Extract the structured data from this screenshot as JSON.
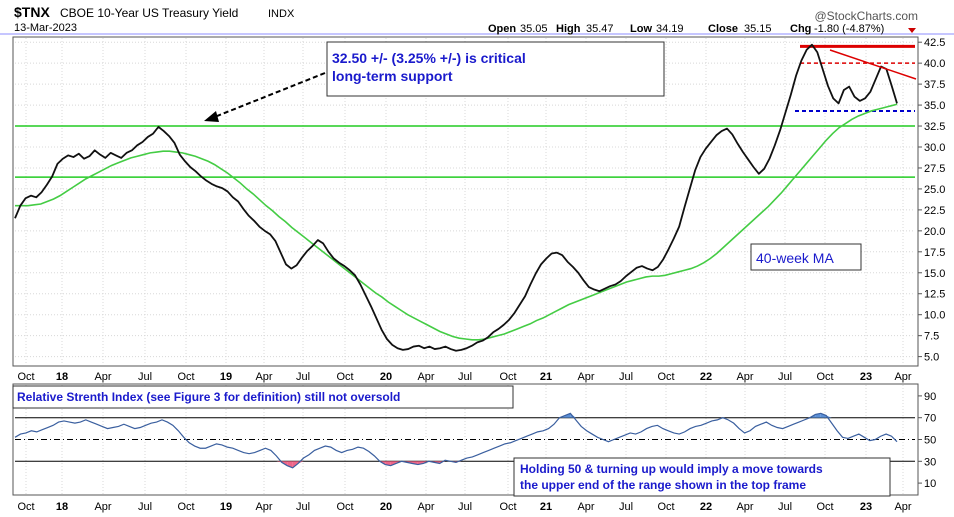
{
  "header": {
    "symbol": "$TNX",
    "name": "CBOE 10-Year US Treasury Yield",
    "exchange": "INDX",
    "date": "13-Mar-2023",
    "watermark": "@StockCharts.com",
    "ohlc": {
      "open_label": "Open",
      "open": "35.05",
      "high_label": "High",
      "high": "35.47",
      "low_label": "Low",
      "low": "34.19",
      "close_label": "Close",
      "close": "35.15",
      "chg_label": "Chg",
      "chg": "-1.80 (-4.87%)"
    }
  },
  "annotations": {
    "support_line1": "32.50 +/- (3.25% +/-) is critical",
    "support_line2": "long-term support",
    "ma_label": "40-week MA",
    "rsi_title": "Relative Strenth Index (see Figure 3 for definition) still not oversold",
    "rsi_note_line1": "Holding 50 & turning up would imply a move towards",
    "rsi_note_line2": "the upper end of the range shown in the top frame"
  },
  "colors": {
    "price": "#111111",
    "ma": "#44cc44",
    "support": "#22cc22",
    "resistance": "#dd0000",
    "blue_dashed": "#0000cc",
    "annotation_text": "#1a1acc",
    "rsi_line": "#3a5f9f",
    "rsi_overbought_fill": "#5b8fd6",
    "rsi_oversold_fill": "#ee6688"
  },
  "chart_data": [
    {
      "type": "line",
      "title": "CBOE 10-Year US Treasury Yield",
      "x_ticks": [
        "Oct",
        "18",
        "Apr",
        "Jul",
        "Oct",
        "19",
        "Apr",
        "Jul",
        "Oct",
        "20",
        "Apr",
        "Jul",
        "Oct",
        "21",
        "Apr",
        "Jul",
        "Oct",
        "22",
        "Apr",
        "Jul",
        "Oct",
        "23",
        "Apr"
      ],
      "y_ticks": [
        "5.0",
        "7.5",
        "10.0",
        "12.5",
        "15.0",
        "17.5",
        "20.0",
        "22.5",
        "25.0",
        "27.5",
        "30.0",
        "32.5",
        "35.0",
        "37.5",
        "40.0",
        "42.5"
      ],
      "ylim": [
        4,
        43
      ],
      "x_start": "2017-10-01",
      "series": [
        {
          "values": [
            21.5,
            23.0,
            23.9,
            24.2,
            24.0,
            24.6,
            25.5,
            26.5,
            28.0,
            28.6,
            29.0,
            28.8,
            29.2,
            28.6,
            28.9,
            29.6,
            29.1,
            28.7,
            29.3,
            29.0,
            28.7,
            29.3,
            29.6,
            30.2,
            30.6,
            31.2,
            31.6,
            32.4,
            31.9,
            31.3,
            30.5,
            29.1,
            28.3,
            27.6,
            27.1,
            26.5,
            26.0,
            25.6,
            25.3,
            25.1,
            24.7,
            24.0,
            23.5,
            22.6,
            21.8,
            21.2,
            20.5,
            20.0,
            19.6,
            18.8,
            17.4,
            16.0,
            15.5,
            15.9,
            16.8,
            17.6,
            18.2,
            18.9,
            18.5,
            17.5,
            16.7,
            16.2,
            15.8,
            15.3,
            14.7,
            13.6,
            12.3,
            11.0,
            9.6,
            8.2,
            7.1,
            6.4,
            6.0,
            5.8,
            5.9,
            6.2,
            6.3,
            6.0,
            6.2,
            5.9,
            6.0,
            6.2,
            5.9,
            5.7,
            5.8,
            6.0,
            6.3,
            6.7,
            6.9,
            7.3,
            7.9,
            8.3,
            8.8,
            9.4,
            10.2,
            11.2,
            12.2,
            13.6,
            14.9,
            16.0,
            16.7,
            17.3,
            17.4,
            17.1,
            16.3,
            15.7,
            15.0,
            14.1,
            13.3,
            13.0,
            12.8,
            13.1,
            13.4,
            13.6,
            14.0,
            14.6,
            15.1,
            15.6,
            15.8,
            15.5,
            15.3,
            15.7,
            16.6,
            17.8,
            19.1,
            20.5,
            22.8,
            25.0,
            27.2,
            28.8,
            29.8,
            30.6,
            31.4,
            31.9,
            32.2,
            31.5,
            30.4,
            29.4,
            28.5,
            27.6,
            26.8,
            27.4,
            28.6,
            30.2,
            32.0,
            34.1,
            36.2,
            38.5,
            40.3,
            41.6,
            42.2,
            41.3,
            39.3,
            37.3,
            35.8,
            35.2,
            36.8,
            37.2,
            36.0,
            35.5,
            35.8,
            36.6,
            38.1,
            39.6,
            39.3,
            37.3,
            35.2
          ]
        },
        {
          "name": "40-week MA",
          "values": [
            23.0,
            23.0,
            23.0,
            23.1,
            23.2,
            23.5,
            23.8,
            24.2,
            24.7,
            25.2,
            25.7,
            26.2,
            26.6,
            27.0,
            27.4,
            27.8,
            28.1,
            28.4,
            28.7,
            28.9,
            29.1,
            29.3,
            29.4,
            29.5,
            29.5,
            29.4,
            29.3,
            29.1,
            28.9,
            28.6,
            28.3,
            27.9,
            27.4,
            26.9,
            26.3,
            25.7,
            25.0,
            24.4,
            23.7,
            23.0,
            22.4,
            21.7,
            21.1,
            20.4,
            19.8,
            19.2,
            18.6,
            18.0,
            17.4,
            16.8,
            16.2,
            15.6,
            15.0,
            14.4,
            13.8,
            13.2,
            12.6,
            12.1,
            11.5,
            11.0,
            10.5,
            10.0,
            9.6,
            9.2,
            8.8,
            8.4,
            8.0,
            7.7,
            7.4,
            7.2,
            7.1,
            7.0,
            7.0,
            7.1,
            7.3,
            7.5,
            7.7,
            8.0,
            8.3,
            8.6,
            8.9,
            9.3,
            9.6,
            10.0,
            10.4,
            10.8,
            11.2,
            11.5,
            11.8,
            12.1,
            12.4,
            12.7,
            13.0,
            13.3,
            13.6,
            13.9,
            14.1,
            14.3,
            14.5,
            14.6,
            14.6,
            14.7,
            14.9,
            15.1,
            15.3,
            15.5,
            15.8,
            16.2,
            16.7,
            17.3,
            18.0,
            18.7,
            19.4,
            20.1,
            20.8,
            21.5,
            22.2,
            22.9,
            23.7,
            24.5,
            25.4,
            26.3,
            27.2,
            28.1,
            29.0,
            29.9,
            30.8,
            31.6,
            32.3,
            32.8,
            33.3,
            33.7,
            34.0,
            34.3,
            34.5,
            34.7,
            34.9,
            35.1
          ]
        }
      ],
      "horizontal_lines": [
        {
          "value": 32.5,
          "style": "solid",
          "color": "support"
        },
        {
          "value": 26.4,
          "style": "solid",
          "color": "support"
        },
        {
          "value": 42.0,
          "style": "solid",
          "color": "resistance"
        },
        {
          "value": 40.0,
          "style": "dashed",
          "color": "resistance"
        },
        {
          "value": 34.3,
          "style": "dashed",
          "color": "blue_dashed"
        }
      ]
    },
    {
      "type": "area",
      "title": "Relative Strenth Index",
      "x_ticks": [
        "Oct",
        "18",
        "Apr",
        "Jul",
        "Oct",
        "19",
        "Apr",
        "Jul",
        "Oct",
        "20",
        "Apr",
        "Jul",
        "Oct",
        "21",
        "Apr",
        "Jul",
        "Oct",
        "22",
        "Apr",
        "Jul",
        "Oct",
        "23",
        "Apr"
      ],
      "y_ticks": [
        "10",
        "30",
        "50",
        "70",
        "90"
      ],
      "ylim": [
        0,
        100
      ],
      "reference_lines": [
        30,
        50,
        70
      ],
      "series": [
        {
          "values": [
            52,
            55,
            56,
            58,
            57,
            59,
            61,
            63,
            66,
            67,
            66,
            65,
            66,
            68,
            66,
            64,
            62,
            60,
            61,
            62,
            64,
            62,
            60,
            61,
            63,
            65,
            66,
            68,
            66,
            63,
            58,
            52,
            47,
            44,
            42,
            42,
            44,
            46,
            45,
            43,
            42,
            40,
            38,
            37,
            38,
            40,
            42,
            40,
            35,
            29,
            26,
            24,
            28,
            33,
            36,
            40,
            42,
            44,
            43,
            40,
            38,
            40,
            41,
            43,
            42,
            39,
            35,
            30,
            27,
            26,
            28,
            30,
            29,
            28,
            27,
            28,
            30,
            29,
            28,
            31,
            30,
            29,
            31,
            33,
            34,
            36,
            38,
            40,
            42,
            44,
            46,
            47,
            49,
            51,
            53,
            55,
            57,
            58,
            60,
            64,
            70,
            72,
            74,
            68,
            62,
            58,
            55,
            52,
            50,
            48,
            50,
            52,
            54,
            56,
            55,
            57,
            60,
            62,
            63,
            60,
            58,
            56,
            55,
            57,
            60,
            62,
            63,
            65,
            67,
            68,
            70,
            68,
            65,
            60,
            56,
            58,
            62,
            64,
            66,
            63,
            61,
            60,
            62,
            64,
            66,
            68,
            70,
            73,
            74,
            72,
            65,
            58,
            52,
            51,
            53,
            55,
            52,
            49,
            50,
            53,
            55,
            53,
            48
          ]
        }
      ]
    }
  ]
}
